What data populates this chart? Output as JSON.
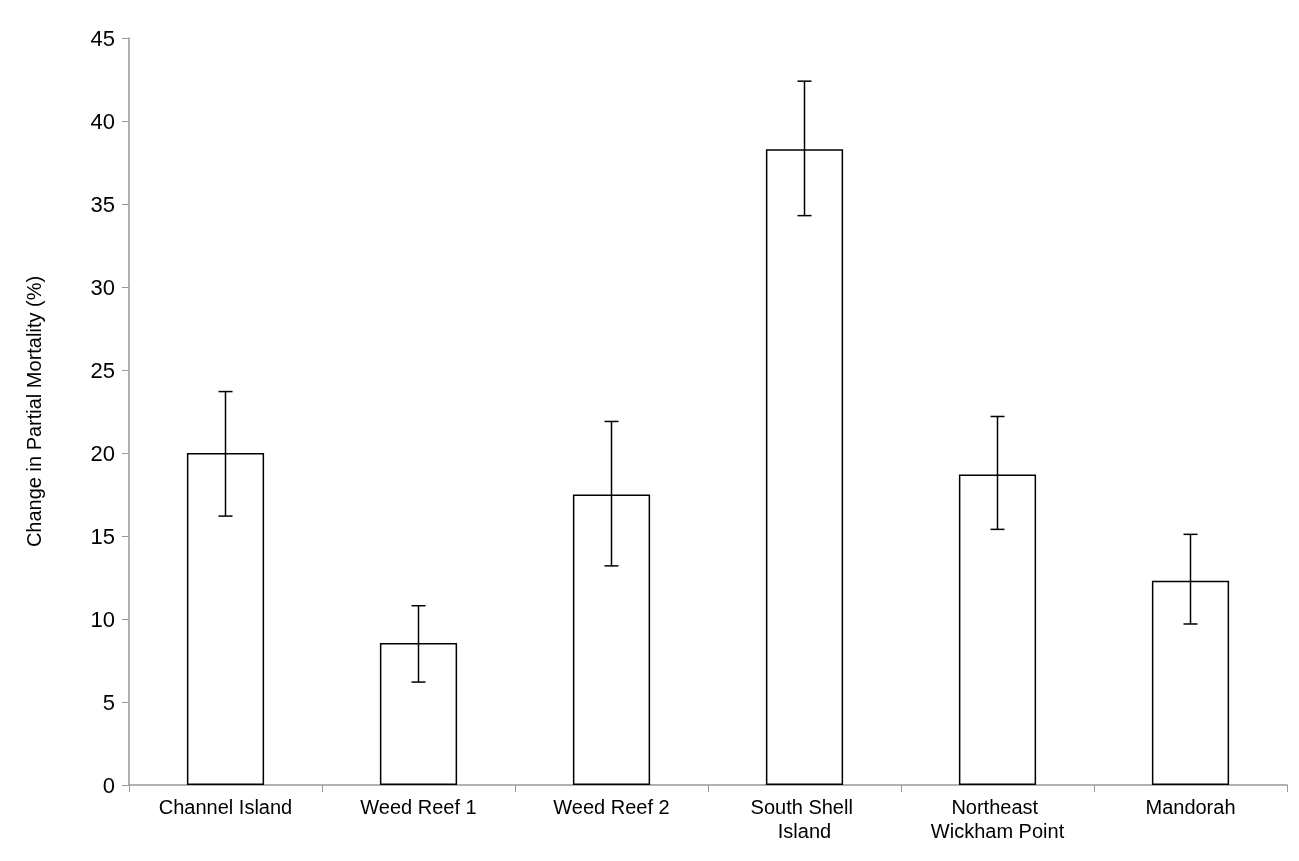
{
  "chart_data": {
    "type": "bar",
    "ylabel": "Change in Partial Mortality (%)",
    "categories": [
      "Channel Island",
      "Weed Reef 1",
      "Weed Reef 2",
      "South Shell Island",
      "Northeast Wickham Point",
      "Mandorah"
    ],
    "values": [
      20.0,
      8.55,
      17.5,
      38.3,
      18.7,
      12.3
    ],
    "errors": [
      [
        16.2,
        23.7
      ],
      [
        6.2,
        10.8
      ],
      [
        13.2,
        21.9
      ],
      [
        34.3,
        42.4
      ],
      [
        15.4,
        22.2
      ],
      [
        9.7,
        15.1
      ]
    ],
    "color": "#ffffff",
    "ylim": [
      0,
      45
    ],
    "yticks": [
      0,
      5,
      10,
      15,
      20,
      25,
      30,
      35,
      40,
      45
    ],
    "grid": false
  }
}
